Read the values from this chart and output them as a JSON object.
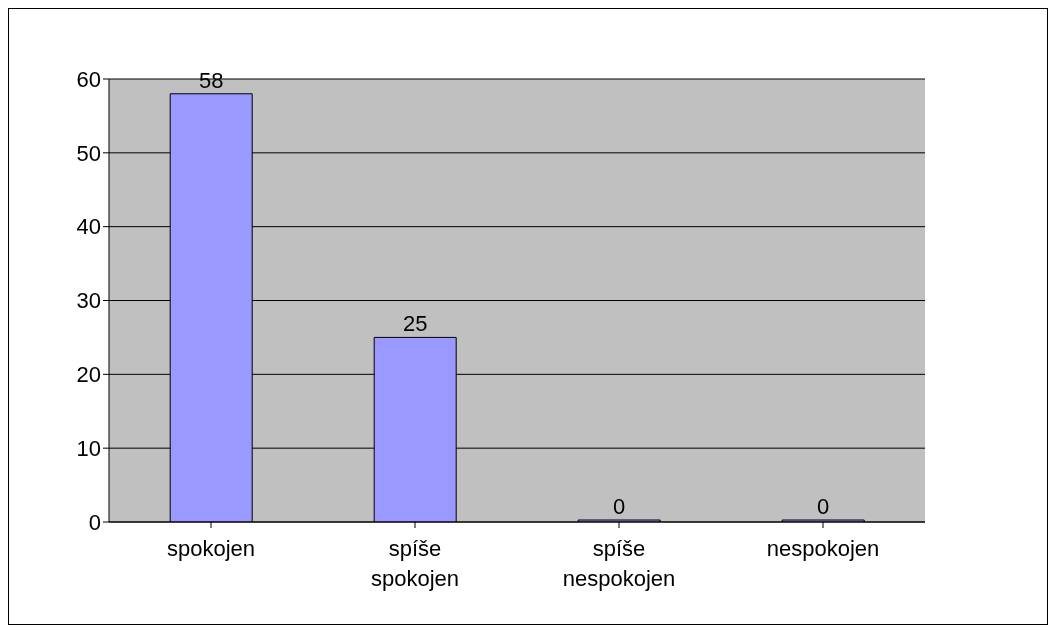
{
  "chart_data": {
    "type": "bar",
    "categories": [
      "spokojen",
      "spíše spokojen",
      "spíše nespokojen",
      "nespokojen"
    ],
    "values": [
      58,
      25,
      0,
      0
    ],
    "color": "#9999ff",
    "ylim": [
      0,
      60
    ],
    "yticks": [
      0,
      10,
      20,
      30,
      40,
      50,
      60
    ],
    "grid": "y",
    "data_labels": true,
    "legend": false
  }
}
